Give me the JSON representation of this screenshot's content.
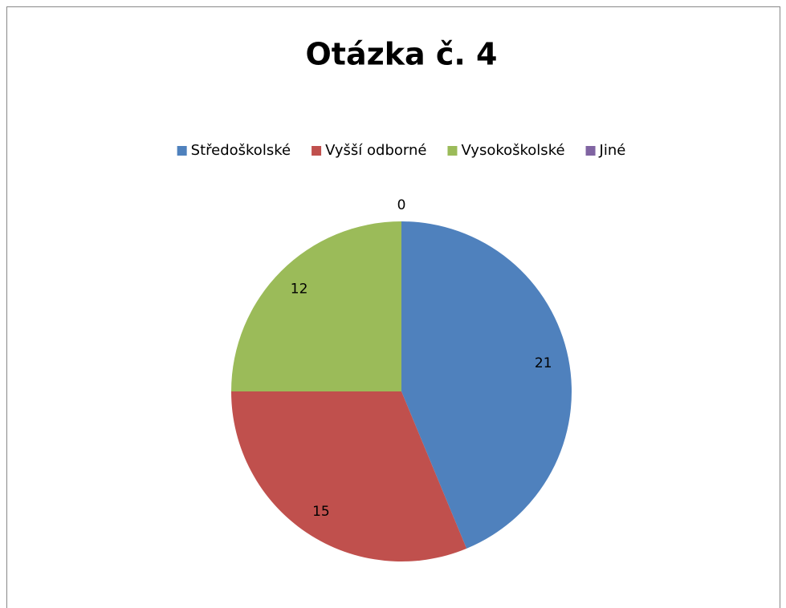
{
  "chart_data": {
    "type": "pie",
    "title": "Otázka č. 4",
    "categories": [
      "Středoškolské",
      "Vyšší odborné",
      "Vysokoškolské",
      "Jiné"
    ],
    "values": [
      21,
      15,
      12,
      0
    ],
    "colors": [
      "#4f81bd",
      "#c0504d",
      "#9bbb59",
      "#8064a2"
    ],
    "legend": "top"
  }
}
